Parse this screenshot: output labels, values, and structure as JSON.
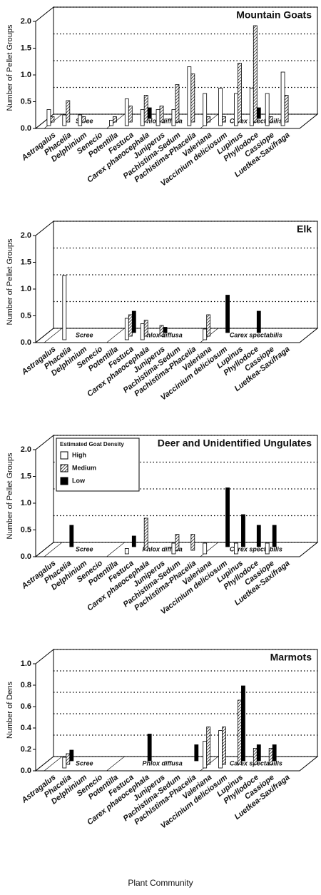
{
  "chart_data": [
    {
      "type": "bar",
      "title": "Mountain Goats",
      "ylabel": "Number of Pellet Groups",
      "categories": [
        "Astragalus",
        "Phacelia",
        "Delphinium",
        "Senecio",
        "Potentilla",
        "Festuca",
        "Carex phaeocephala",
        "Juniperus",
        "Pachistima-Sedum",
        "Pachistima-Phacelia",
        "Valeriana",
        "Vaccinium deliciosum",
        "Lupinus",
        "Phyllodoce",
        "Cassiope",
        "Luetkea-Saxifraga"
      ],
      "category_groups": [
        "Scree",
        "Scree",
        "Scree",
        "Scree",
        "Phlox diffusa",
        "Phlox diffusa",
        "Phlox diffusa",
        "Phlox diffusa",
        "Phlox diffusa",
        "Phlox diffusa",
        "Carex spectabilis",
        "Carex spectabilis",
        "Carex spectabilis",
        "Carex spectabilis",
        "Carex spectabilis",
        "Carex spectabilis"
      ],
      "series": [
        {
          "name": "High",
          "color": "#ffffff",
          "values": [
            0.3,
            0.2,
            0.2,
            0,
            0.1,
            0.5,
            0.3,
            0.3,
            0.3,
            1.1,
            0.6,
            0.7,
            0.6,
            0.7,
            0.6,
            1.0
          ]
        },
        {
          "name": "Medium",
          "color": "#ffffff",
          "pattern": "hatch",
          "values": [
            0.1,
            0.4,
            0.1,
            0,
            0.1,
            0.3,
            0.5,
            0.3,
            0.7,
            0.9,
            0.1,
            0.1,
            1.1,
            1.8,
            0.1,
            0.5
          ]
        },
        {
          "name": "Low",
          "color": "#000000",
          "values": [
            0,
            0,
            0,
            0,
            0,
            0,
            0.2,
            0,
            0,
            0,
            0,
            0,
            0,
            0.2,
            0,
            0
          ]
        }
      ],
      "ylim": [
        0,
        2
      ],
      "yticks": [
        {
          "value": 0,
          "label": "0.0"
        },
        0.5,
        {
          "value": 1,
          "label": "1.0"
        },
        1.5,
        {
          "value": 2,
          "label": "2.0"
        }
      ],
      "grid": true
    },
    {
      "type": "bar",
      "title": "Elk",
      "ylabel": "Number of Pellet Groups",
      "categories": [
        "Astragalus",
        "Phacelia",
        "Delphinium",
        "Senecio",
        "Potentilla",
        "Festuca",
        "Carex phaeocephala",
        "Juniperus",
        "Pachistima-Sedum",
        "Pachistima-Phacelia",
        "Valeriana",
        "Vaccinium deliciosum",
        "Lupinus",
        "Phyllodoce",
        "Cassiope",
        "Luetkea-Saxifraga"
      ],
      "category_groups": [
        "Scree",
        "Scree",
        "Scree",
        "Scree",
        "Phlox diffusa",
        "Phlox diffusa",
        "Phlox diffusa",
        "Phlox diffusa",
        "Phlox diffusa",
        "Phlox diffusa",
        "Carex spectabilis",
        "Carex spectabilis",
        "Carex spectabilis",
        "Carex spectabilis",
        "Carex spectabilis",
        "Carex spectabilis"
      ],
      "series": [
        {
          "name": "High",
          "color": "#ffffff",
          "values": [
            0,
            1.2,
            0,
            0,
            0,
            0.4,
            0.3,
            0,
            0,
            0,
            0.2,
            0,
            0,
            0,
            0,
            0
          ]
        },
        {
          "name": "Medium",
          "color": "#ffffff",
          "pattern": "hatch",
          "values": [
            0,
            0,
            0,
            0,
            0,
            0.4,
            0.3,
            0.2,
            0,
            0,
            0.4,
            0,
            0,
            0,
            0,
            0
          ]
        },
        {
          "name": "Low",
          "color": "#000000",
          "values": [
            0,
            0,
            0,
            0,
            0,
            0.4,
            0,
            0.1,
            0,
            0,
            0,
            0.7,
            0,
            0.4,
            0,
            0
          ]
        }
      ],
      "ylim": [
        0,
        2
      ],
      "yticks": [
        {
          "value": 0,
          "label": "0.0"
        },
        0.5,
        {
          "value": 1,
          "label": "1.0"
        },
        1.5,
        {
          "value": 2,
          "label": "2.0"
        }
      ],
      "grid": true
    },
    {
      "type": "bar",
      "title": "Deer and Unidentified Ungulates",
      "ylabel": "Number of Pellet Groups",
      "categories": [
        "Astragalus",
        "Phacelia",
        "Delphinium",
        "Senecio",
        "Potentilla",
        "Festuca",
        "Carex phaeocephala",
        "Juniperus",
        "Pachistima-Sedum",
        "Pachistima-Phacelia",
        "Valeriana",
        "Vaccinium deliciosum",
        "Lupinus",
        "Phyllodoce",
        "Cassiope",
        "Luetkea-Saxifraga"
      ],
      "category_groups": [
        "Scree",
        "Scree",
        "Scree",
        "Scree",
        "Phlox diffusa",
        "Phlox diffusa",
        "Phlox diffusa",
        "Phlox diffusa",
        "Phlox diffusa",
        "Phlox diffusa",
        "Carex spectabilis",
        "Carex spectabilis",
        "Carex spectabilis",
        "Carex spectabilis",
        "Carex spectabilis",
        "Carex spectabilis"
      ],
      "legend_title": "Estimated Goat Density",
      "legend": "top-left",
      "series": [
        {
          "name": "High",
          "color": "#ffffff",
          "values": [
            0,
            0,
            0,
            0,
            0,
            0.1,
            0,
            0,
            0.2,
            0,
            0.2,
            0,
            0.2,
            0,
            0.2,
            0
          ]
        },
        {
          "name": "Medium",
          "color": "#ffffff",
          "pattern": "hatch",
          "values": [
            0,
            0,
            0,
            0,
            0,
            0,
            0.6,
            0,
            0.3,
            0.3,
            0,
            0,
            0,
            0,
            0,
            0
          ]
        },
        {
          "name": "Low",
          "color": "#000000",
          "values": [
            0,
            0.4,
            0,
            0,
            0,
            0.2,
            0,
            0,
            0,
            0,
            0,
            1.1,
            0.6,
            0.4,
            0.4,
            0
          ]
        }
      ],
      "ylim": [
        0,
        2
      ],
      "yticks": [
        {
          "value": 0,
          "label": "0.0"
        },
        0.5,
        {
          "value": 1,
          "label": "1.0"
        },
        1.5,
        {
          "value": 2,
          "label": "2.0"
        }
      ],
      "grid": true
    },
    {
      "type": "bar",
      "title": "Marmots",
      "ylabel": "Number of Dens",
      "xlabel": "Plant Community",
      "categories": [
        "Astragalus",
        "Phacelia",
        "Delphinium",
        "Senecio",
        "Potentilla",
        "Festuca",
        "Carex phaeocephala",
        "Juniperus",
        "Pachistima-Sedum",
        "Pachistima-Phacelia",
        "Valeriana",
        "Vaccinium deliciosum",
        "Lupinus",
        "Phyllodoce",
        "Cassiope",
        "Luetkea-Saxifraga"
      ],
      "category_groups": [
        "Scree",
        "Scree",
        "Scree",
        "Scree",
        "Phlox diffusa",
        "Phlox diffusa",
        "Phlox diffusa",
        "Phlox diffusa",
        "Phlox diffusa",
        "Phlox diffusa",
        "Carex spectabilis",
        "Carex spectabilis",
        "Carex spectabilis",
        "Carex spectabilis",
        "Carex spectabilis",
        "Carex spectabilis"
      ],
      "series": [
        {
          "name": "High",
          "color": "#ffffff",
          "values": [
            0,
            0.1,
            0,
            0,
            0,
            0,
            0,
            0,
            0,
            0,
            0.25,
            0.35,
            0,
            0,
            0,
            0
          ]
        },
        {
          "name": "Medium",
          "color": "#ffffff",
          "pattern": "hatch",
          "values": [
            0,
            0.1,
            0,
            0,
            0,
            0,
            0,
            0,
            0,
            0,
            0.35,
            0.35,
            0.6,
            0.15,
            0.15,
            0
          ]
        },
        {
          "name": "Low",
          "color": "#000000",
          "values": [
            0,
            0.1,
            0,
            0,
            0,
            0,
            0.25,
            0,
            0,
            0.15,
            0,
            0,
            0.7,
            0.15,
            0.15,
            0
          ]
        }
      ],
      "ylim": [
        0,
        1
      ],
      "yticks": [
        {
          "value": 0,
          "label": "0.0"
        },
        0.2,
        0.4,
        0.6,
        0.8,
        {
          "value": 1,
          "label": "1.0"
        }
      ],
      "grid": true
    }
  ]
}
